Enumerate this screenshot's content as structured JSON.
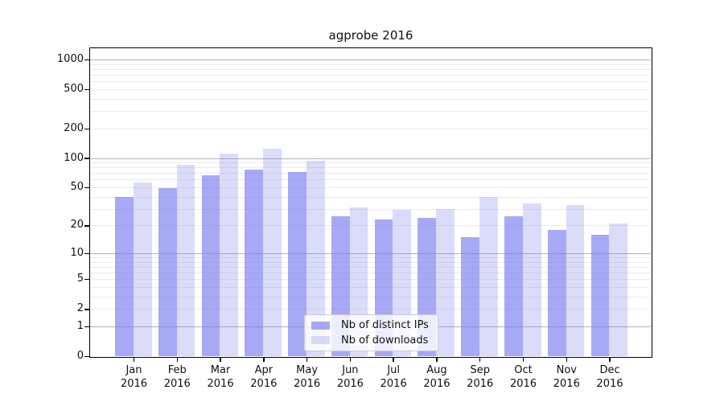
{
  "chart_data": {
    "type": "bar",
    "title": "agprobe 2016",
    "yscale": "log1p",
    "ylim": [
      0,
      1300
    ],
    "yticks": [
      1000,
      500,
      200,
      100,
      50,
      20,
      10,
      5,
      2,
      1,
      0
    ],
    "categories": [
      "Jan 2016",
      "Feb 2016",
      "Mar 2016",
      "Apr 2016",
      "May 2016",
      "Jun 2016",
      "Jul 2016",
      "Aug 2016",
      "Sep 2016",
      "Oct 2016",
      "Nov 2016",
      "Dec 2016"
    ],
    "series": [
      {
        "name": "Nb of distinct IPs",
        "color": "#7a7cee",
        "alpha": 0.66,
        "values": [
          40,
          49,
          67,
          76,
          72,
          25,
          23,
          24,
          15,
          25,
          18,
          16
        ]
      },
      {
        "name": "Nb of downloads",
        "color": "#7a7cee",
        "alpha": 0.27,
        "values": [
          56,
          85,
          110,
          124,
          93,
          31,
          29,
          30,
          40,
          34,
          33,
          21
        ]
      }
    ],
    "legend_position": "lower center",
    "grid": {
      "major_at": [
        1,
        10,
        100,
        1000
      ],
      "minor_at": [
        2,
        3,
        4,
        5,
        6,
        7,
        8,
        9,
        20,
        30,
        40,
        50,
        60,
        70,
        80,
        90,
        200,
        300,
        400,
        500,
        600,
        700,
        800,
        900
      ],
      "major_color": "#b3b3b3",
      "minor_color": "#ebebeb"
    },
    "axis_color": "#000000"
  }
}
